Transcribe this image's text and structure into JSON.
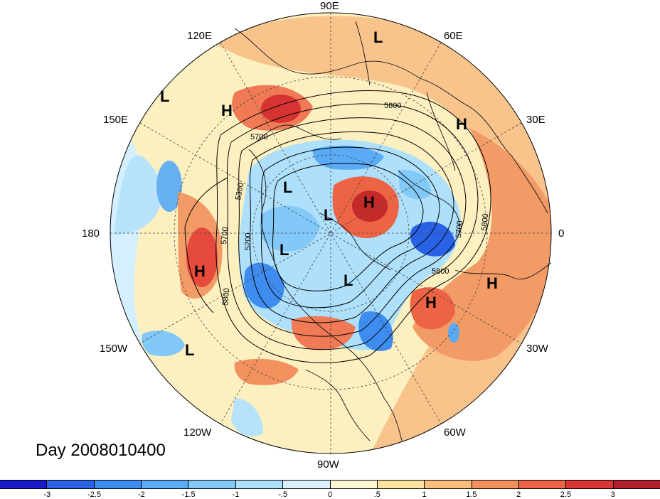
{
  "map": {
    "projection": "north-polar-stereographic",
    "lon_labels": [
      {
        "text": "90E",
        "lon": 90
      },
      {
        "text": "60E",
        "lon": 60
      },
      {
        "text": "30E",
        "lon": 30
      },
      {
        "text": "0",
        "lon": 0
      },
      {
        "text": "30W",
        "lon": -30
      },
      {
        "text": "60W",
        "lon": -60
      },
      {
        "text": "90W",
        "lon": -90
      },
      {
        "text": "120W",
        "lon": -120
      },
      {
        "text": "150W",
        "lon": -150
      },
      {
        "text": "180",
        "lon": 180
      },
      {
        "text": "150E",
        "lon": 150
      },
      {
        "text": "120E",
        "lon": 120
      }
    ],
    "contour_labels": [
      "5800",
      "5700",
      "5300",
      "5200",
      "5700",
      "5800",
      "5800",
      "5700",
      "5800"
    ],
    "pressure_systems": [
      {
        "type": "L",
        "name": "low-siberia-north"
      },
      {
        "type": "L",
        "name": "low-north-pacific-west"
      },
      {
        "type": "H",
        "name": "high-east-asia"
      },
      {
        "type": "H",
        "name": "high-europe"
      },
      {
        "type": "L",
        "name": "low-alaska-arctic"
      },
      {
        "type": "L",
        "name": "low-arctic-center"
      },
      {
        "type": "H",
        "name": "high-arctic"
      },
      {
        "type": "L",
        "name": "low-canada"
      },
      {
        "type": "L",
        "name": "low-greenland-sea"
      },
      {
        "type": "H",
        "name": "high-north-pacific"
      },
      {
        "type": "H",
        "name": "high-atlantic-east"
      },
      {
        "type": "H",
        "name": "high-atlantic"
      },
      {
        "type": "L",
        "name": "low-east-pacific"
      }
    ]
  },
  "title": "Day 2008010400",
  "colorbar": {
    "colors": [
      "#1a1acc",
      "#2a62e6",
      "#3e8cf0",
      "#5aaaf5",
      "#82c8f8",
      "#aee0fb",
      "#d8f1fd",
      "#fff7d0",
      "#fde39e",
      "#f9bd7e",
      "#f3915e",
      "#ec6444",
      "#da3535",
      "#b0202a"
    ],
    "ticks": [
      "-3",
      "-2.5",
      "-2",
      "-1.5",
      "-1",
      "-.5",
      "0",
      ".5",
      "1",
      "1.5",
      "2",
      "2.5",
      "3"
    ]
  }
}
